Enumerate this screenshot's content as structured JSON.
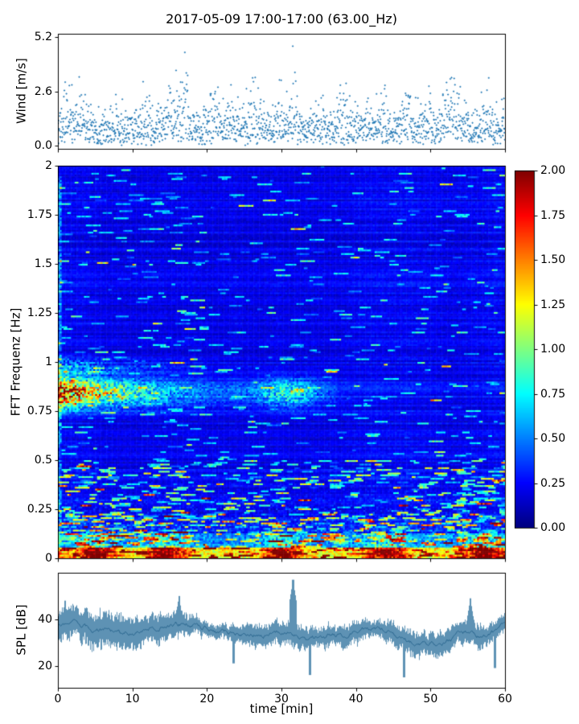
{
  "figure": {
    "title": "2017-05-09 17:00-17:00 (63.00_Hz)",
    "background": "#ffffff",
    "accent_color": "#2077b4"
  },
  "chart_data": [
    {
      "id": "wind",
      "type": "scatter",
      "ylabel": "Wind [m/s]",
      "marker": "plus",
      "marker_color": "#2077b4",
      "xlim": [
        0,
        60
      ],
      "ylim": [
        -0.15,
        5.35
      ],
      "ytick_labels": [
        "0.0",
        "2.6",
        "5.2"
      ],
      "ytick_values": [
        0.0,
        2.6,
        5.2
      ],
      "xtick_values": [
        0,
        10,
        20,
        30,
        40,
        50,
        60
      ],
      "n_points": 1700,
      "seed": 1234,
      "baseline": 1.6,
      "gusts": [
        {
          "x": 1.6,
          "amp": 0.9,
          "w": 1.0
        },
        {
          "x": 3.6,
          "amp": 0.7,
          "w": 0.8
        },
        {
          "x": 8.0,
          "amp": 0.5,
          "w": 1.2
        },
        {
          "x": 12.0,
          "amp": 0.8,
          "w": 0.9
        },
        {
          "x": 15.7,
          "amp": 1.3,
          "w": 1.4
        },
        {
          "x": 17.1,
          "amp": 2.3,
          "w": 0.5
        },
        {
          "x": 20.6,
          "amp": 0.85,
          "w": 0.7
        },
        {
          "x": 23.2,
          "amp": 0.7,
          "w": 0.8
        },
        {
          "x": 26.6,
          "amp": 1.25,
          "w": 0.9
        },
        {
          "x": 30.6,
          "amp": 1.0,
          "w": 1.1
        },
        {
          "x": 31.7,
          "amp": 2.3,
          "w": 0.35
        },
        {
          "x": 35.0,
          "amp": 0.55,
          "w": 1.0
        },
        {
          "x": 38.6,
          "amp": 1.0,
          "w": 0.9
        },
        {
          "x": 41.2,
          "amp": 0.9,
          "w": 0.8
        },
        {
          "x": 43.6,
          "amp": 1.1,
          "w": 0.7
        },
        {
          "x": 46.8,
          "amp": 1.3,
          "w": 0.6
        },
        {
          "x": 49.2,
          "amp": 0.8,
          "w": 0.8
        },
        {
          "x": 52.6,
          "amp": 2.0,
          "w": 1.1
        },
        {
          "x": 54.2,
          "amp": 1.15,
          "w": 0.6
        },
        {
          "x": 57.6,
          "amp": 0.8,
          "w": 0.7
        }
      ]
    },
    {
      "id": "spectrogram",
      "type": "heatmap",
      "ylabel": "FFT Frequenz [Hz]",
      "colormap": "jet",
      "vmin": 0,
      "vmax": 2,
      "xlim": [
        0,
        60
      ],
      "ylim": [
        0,
        2
      ],
      "ytick_labels": [
        "2",
        "1.75",
        "1.5",
        "1.25",
        "1",
        "0.75",
        "0.5",
        "0.25",
        "0"
      ],
      "ytick_values": [
        2,
        1.75,
        1.5,
        1.25,
        1,
        0.75,
        0.5,
        0.25,
        0
      ],
      "xtick_values": [
        0,
        10,
        20,
        30,
        40,
        50,
        60
      ],
      "grid_nx": 240,
      "grid_ny": 220,
      "seed": 77,
      "background_level": 0.18,
      "features": {
        "low_freq_band": {
          "freq_max": 0.05,
          "level": 1.8,
          "hotspots_x": [
            5,
            14.5,
            30,
            44,
            57
          ]
        },
        "secondary_band": {
          "freq_range": [
            0.05,
            0.12
          ],
          "level": 0.9
        },
        "speckle_zone": {
          "freq_max": 0.5,
          "density": 0.09
        },
        "microseism_band": {
          "freq_center": 0.84,
          "x_extent": 22,
          "peak_level": 1.8
        },
        "microseism_patch2": {
          "freq_center": 0.84,
          "x_center": 31,
          "level": 0.6
        }
      },
      "colorbar": {
        "tick_labels": [
          "2.00",
          "1.75",
          "1.50",
          "1.25",
          "1.00",
          "0.75",
          "0.50",
          "0.25",
          "0.00"
        ],
        "tick_values": [
          2.0,
          1.75,
          1.5,
          1.25,
          1.0,
          0.75,
          0.5,
          0.25,
          0.0
        ]
      }
    },
    {
      "id": "spl",
      "type": "line",
      "ylabel": "SPL [dB]",
      "xlabel": "time [min]",
      "line_color": "#31739f",
      "xlim": [
        0,
        60
      ],
      "ylim": [
        10.5,
        60
      ],
      "ytick_labels": [
        "20",
        "40"
      ],
      "ytick_values": [
        20,
        40
      ],
      "xtick_labels": [
        "0",
        "10",
        "20",
        "30",
        "40",
        "50",
        "60"
      ],
      "xtick_values": [
        0,
        10,
        20,
        30,
        40,
        50,
        60
      ],
      "seed": 9,
      "band_halfwidth": 5,
      "mean_profile": [
        [
          0,
          38
        ],
        [
          3,
          36
        ],
        [
          6,
          34
        ],
        [
          10,
          34
        ],
        [
          14,
          37
        ],
        [
          16,
          38
        ],
        [
          20,
          35
        ],
        [
          24,
          33
        ],
        [
          28,
          34
        ],
        [
          31,
          35
        ],
        [
          33,
          30
        ],
        [
          36,
          33
        ],
        [
          40,
          35
        ],
        [
          44,
          36
        ],
        [
          46,
          30
        ],
        [
          48,
          29
        ],
        [
          51,
          31
        ],
        [
          53,
          34
        ],
        [
          56,
          33
        ],
        [
          58,
          34
        ],
        [
          60,
          38
        ]
      ],
      "spikes": [
        {
          "x": 31.5,
          "top": 57
        },
        {
          "x": 16.2,
          "top": 50
        },
        {
          "x": 0.9,
          "top": 48
        },
        {
          "x": 55.3,
          "top": 49
        }
      ],
      "dips": [
        {
          "x": 33.8,
          "bottom": 16
        },
        {
          "x": 46.4,
          "bottom": 15
        },
        {
          "x": 58.6,
          "bottom": 19
        },
        {
          "x": 23.5,
          "bottom": 21
        }
      ]
    }
  ]
}
